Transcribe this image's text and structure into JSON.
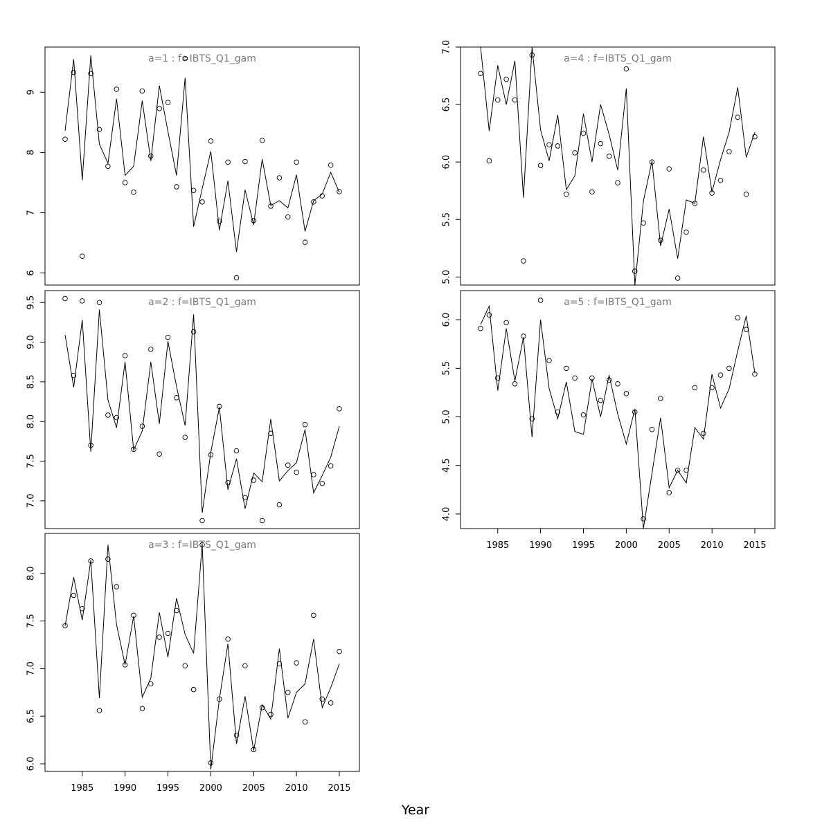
{
  "figure": {
    "xlabel": "Year"
  },
  "chart_data": [
    {
      "type": "line",
      "panel": "a=1",
      "title": "a=1  :  f=IBTS_Q1_gam",
      "xlim": [
        1983,
        2015
      ],
      "ylim": [
        5.8,
        9.75
      ],
      "yticks": [
        "6",
        "7",
        "8",
        "9"
      ],
      "xticks": [],
      "show_xticks": false,
      "series": [
        {
          "kind": "line",
          "x": [
            1983,
            1984,
            1985,
            1986,
            1987,
            1988,
            1989,
            1990,
            1991,
            1992,
            1993,
            1994,
            1995,
            1996,
            1997,
            1998,
            1999,
            2000,
            2001,
            2002,
            2003,
            2004,
            2005,
            2006,
            2007,
            2008,
            2009,
            2010,
            2011,
            2012,
            2013,
            2014,
            2015
          ],
          "y": [
            8.36,
            9.55,
            7.54,
            9.61,
            8.14,
            7.82,
            8.89,
            7.62,
            7.77,
            8.86,
            7.86,
            9.11,
            8.35,
            7.62,
            9.24,
            6.77,
            7.4,
            8.02,
            6.71,
            7.53,
            6.35,
            7.38,
            6.8,
            7.89,
            7.12,
            7.2,
            7.08,
            7.63,
            6.69,
            7.2,
            7.31,
            7.67,
            7.34
          ]
        },
        {
          "kind": "points",
          "x": [
            1983,
            1984,
            1985,
            1986,
            1987,
            1988,
            1989,
            1990,
            1991,
            1992,
            1993,
            1994,
            1995,
            1996,
            1997,
            1998,
            1999,
            2000,
            2001,
            2002,
            2003,
            2004,
            2005,
            2006,
            2007,
            2008,
            2009,
            2010,
            2011,
            2012,
            2013,
            2014,
            2015
          ],
          "y": [
            8.22,
            9.33,
            6.28,
            9.31,
            8.38,
            7.77,
            9.05,
            7.5,
            7.34,
            9.02,
            7.94,
            8.73,
            8.83,
            7.43,
            9.56,
            7.37,
            7.18,
            8.19,
            6.86,
            7.84,
            5.92,
            7.85,
            6.87,
            8.2,
            7.11,
            7.58,
            6.93,
            7.84,
            6.51,
            7.18,
            7.28,
            7.79,
            7.35
          ]
        }
      ]
    },
    {
      "type": "line",
      "panel": "a=2",
      "title": "a=2  :  f=IBTS_Q1_gam",
      "xlim": [
        1983,
        2015
      ],
      "ylim": [
        6.65,
        9.65
      ],
      "yticks": [
        "7.0",
        "7.5",
        "8.0",
        "8.5",
        "9.0",
        "9.5"
      ],
      "xticks": [],
      "show_xticks": false,
      "series": [
        {
          "kind": "line",
          "x": [
            1983,
            1984,
            1985,
            1986,
            1987,
            1988,
            1989,
            1990,
            1991,
            1992,
            1993,
            1994,
            1995,
            1996,
            1997,
            1998,
            1999,
            2000,
            2001,
            2002,
            2003,
            2004,
            2005,
            2006,
            2007,
            2008,
            2009,
            2010,
            2011,
            2012,
            2013,
            2014,
            2015
          ],
          "y": [
            9.09,
            8.43,
            9.28,
            7.62,
            9.41,
            8.27,
            7.92,
            8.75,
            7.64,
            7.88,
            8.75,
            7.97,
            9.01,
            8.44,
            7.95,
            9.35,
            6.85,
            7.61,
            8.18,
            7.14,
            7.53,
            6.9,
            7.35,
            7.24,
            8.03,
            7.25,
            7.38,
            7.48,
            7.9,
            7.1,
            7.32,
            7.55,
            7.94
          ]
        },
        {
          "kind": "points",
          "x": [
            1983,
            1984,
            1985,
            1986,
            1987,
            1988,
            1989,
            1990,
            1991,
            1992,
            1993,
            1994,
            1995,
            1996,
            1997,
            1998,
            1999,
            2000,
            2001,
            2002,
            2003,
            2004,
            2005,
            2006,
            2007,
            2008,
            2009,
            2010,
            2011,
            2012,
            2013,
            2014,
            2015
          ],
          "y": [
            9.55,
            8.58,
            9.52,
            7.7,
            9.5,
            8.08,
            8.05,
            8.83,
            7.65,
            7.94,
            8.91,
            7.59,
            9.06,
            8.3,
            7.8,
            9.13,
            6.75,
            7.58,
            8.19,
            7.23,
            7.63,
            7.04,
            7.26,
            6.75,
            7.85,
            6.95,
            7.45,
            7.36,
            7.96,
            7.33,
            7.22,
            7.44,
            8.16
          ]
        }
      ]
    },
    {
      "type": "line",
      "panel": "a=3",
      "title": "a=3  :  f=IBTS_Q1_gam",
      "xlim": [
        1983,
        2015
      ],
      "ylim": [
        5.92,
        8.42
      ],
      "yticks": [
        "6.0",
        "6.5",
        "7.0",
        "7.5",
        "8.0"
      ],
      "xticks": [
        "1985",
        "1990",
        "1995",
        "2000",
        "2005",
        "2010",
        "2015"
      ],
      "show_xticks": true,
      "series": [
        {
          "kind": "line",
          "x": [
            1983,
            1984,
            1985,
            1986,
            1987,
            1988,
            1989,
            1990,
            1991,
            1992,
            1993,
            1994,
            1995,
            1996,
            1997,
            1998,
            1999,
            2000,
            2001,
            2002,
            2003,
            2004,
            2005,
            2006,
            2007,
            2008,
            2009,
            2010,
            2011,
            2012,
            2013,
            2014,
            2015
          ],
          "y": [
            7.45,
            7.96,
            7.51,
            8.14,
            6.69,
            8.3,
            7.46,
            7.04,
            7.55,
            6.7,
            6.9,
            7.59,
            7.12,
            7.74,
            7.36,
            7.16,
            8.31,
            5.94,
            6.68,
            7.26,
            6.21,
            6.71,
            6.14,
            6.62,
            6.47,
            7.21,
            6.48,
            6.75,
            6.84,
            7.31,
            6.59,
            6.8,
            7.05
          ]
        },
        {
          "kind": "points",
          "x": [
            1983,
            1984,
            1985,
            1986,
            1987,
            1988,
            1989,
            1990,
            1991,
            1992,
            1993,
            1994,
            1995,
            1996,
            1997,
            1998,
            1999,
            2000,
            2001,
            2002,
            2003,
            2004,
            2005,
            2006,
            2007,
            2008,
            2009,
            2010,
            2011,
            2012,
            2013,
            2014,
            2015
          ],
          "y": [
            7.45,
            7.77,
            7.63,
            8.13,
            6.56,
            8.15,
            7.86,
            7.04,
            7.56,
            6.58,
            6.84,
            7.33,
            7.37,
            7.61,
            7.03,
            6.78,
            8.3,
            6.01,
            6.68,
            7.31,
            6.3,
            7.03,
            6.15,
            6.59,
            6.52,
            7.05,
            6.75,
            7.06,
            6.44,
            7.56,
            6.68,
            6.64,
            7.18
          ]
        }
      ]
    },
    {
      "type": "line",
      "panel": "a=4",
      "title": "a=4  :  f=IBTS_Q1_gam",
      "xlim": [
        1983,
        2015
      ],
      "ylim": [
        4.93,
        7.0
      ],
      "yticks": [
        "5.0",
        "5.5",
        "6.0",
        "6.5",
        "7.0"
      ],
      "xticks": [],
      "show_xticks": false,
      "series": [
        {
          "kind": "line",
          "x": [
            1983,
            1984,
            1985,
            1986,
            1987,
            1988,
            1989,
            1990,
            1991,
            1992,
            1993,
            1994,
            1995,
            1996,
            1997,
            1998,
            1999,
            2000,
            2001,
            2002,
            2003,
            2004,
            2005,
            2006,
            2007,
            2008,
            2009,
            2010,
            2011,
            2012,
            2013,
            2014,
            2015
          ],
          "y": [
            7.0,
            6.27,
            6.84,
            6.5,
            6.88,
            5.69,
            7.0,
            6.28,
            6.01,
            6.41,
            5.76,
            5.88,
            6.42,
            6.0,
            6.5,
            6.24,
            5.93,
            6.64,
            4.93,
            5.66,
            6.01,
            5.27,
            5.59,
            5.16,
            5.67,
            5.64,
            6.22,
            5.74,
            6.02,
            6.26,
            6.65,
            6.04,
            6.26
          ]
        },
        {
          "kind": "points",
          "x": [
            1983,
            1984,
            1985,
            1986,
            1987,
            1988,
            1989,
            1990,
            1991,
            1992,
            1993,
            1994,
            1995,
            1996,
            1997,
            1998,
            1999,
            2000,
            2001,
            2002,
            2003,
            2004,
            2005,
            2006,
            2007,
            2008,
            2009,
            2010,
            2011,
            2012,
            2013,
            2014,
            2015
          ],
          "y": [
            6.77,
            6.01,
            6.54,
            6.72,
            6.54,
            5.14,
            6.93,
            5.97,
            6.15,
            6.14,
            5.72,
            6.08,
            6.25,
            5.74,
            6.16,
            6.05,
            5.82,
            6.81,
            5.05,
            5.47,
            6.0,
            5.32,
            5.94,
            4.99,
            5.39,
            5.64,
            5.93,
            5.73,
            5.84,
            6.09,
            6.39,
            5.72,
            6.22
          ]
        }
      ]
    },
    {
      "type": "line",
      "panel": "a=5",
      "title": "a=5  :  f=IBTS_Q1_gam",
      "xlim": [
        1983,
        2015
      ],
      "ylim": [
        3.85,
        6.3
      ],
      "yticks": [
        "4.0",
        "4.5",
        "5.0",
        "5.5",
        "6.0"
      ],
      "xticks": [
        "1985",
        "1990",
        "1995",
        "2000",
        "2005",
        "2010",
        "2015"
      ],
      "show_xticks": true,
      "series": [
        {
          "kind": "line",
          "x": [
            1983,
            1984,
            1985,
            1986,
            1987,
            1988,
            1989,
            1990,
            1991,
            1992,
            1993,
            1994,
            1995,
            1996,
            1997,
            1998,
            1999,
            2000,
            2001,
            2002,
            2003,
            2004,
            2005,
            2006,
            2007,
            2008,
            2009,
            2010,
            2011,
            2012,
            2013,
            2014,
            2015
          ],
          "y": [
            5.95,
            6.14,
            5.27,
            5.91,
            5.37,
            5.82,
            4.79,
            6.0,
            5.29,
            4.98,
            5.36,
            4.85,
            4.82,
            5.39,
            5.0,
            5.43,
            5.03,
            4.72,
            5.08,
            3.85,
            4.42,
            4.99,
            4.27,
            4.45,
            4.32,
            4.89,
            4.77,
            5.44,
            5.09,
            5.29,
            5.68,
            6.04,
            5.45
          ]
        },
        {
          "kind": "points",
          "x": [
            1983,
            1984,
            1985,
            1986,
            1987,
            1988,
            1989,
            1990,
            1991,
            1992,
            1993,
            1994,
            1995,
            1996,
            1997,
            1998,
            1999,
            2000,
            2001,
            2002,
            2003,
            2004,
            2005,
            2006,
            2007,
            2008,
            2009,
            2010,
            2011,
            2012,
            2013,
            2014,
            2015
          ],
          "y": [
            5.91,
            6.05,
            5.4,
            5.97,
            5.34,
            5.83,
            4.98,
            6.2,
            5.58,
            5.05,
            5.5,
            5.4,
            5.02,
            5.4,
            5.17,
            5.38,
            5.34,
            5.24,
            5.05,
            3.95,
            4.87,
            5.19,
            4.22,
            4.45,
            4.45,
            5.3,
            4.83,
            5.3,
            5.43,
            5.5,
            6.02,
            5.9,
            5.44
          ]
        }
      ]
    }
  ]
}
